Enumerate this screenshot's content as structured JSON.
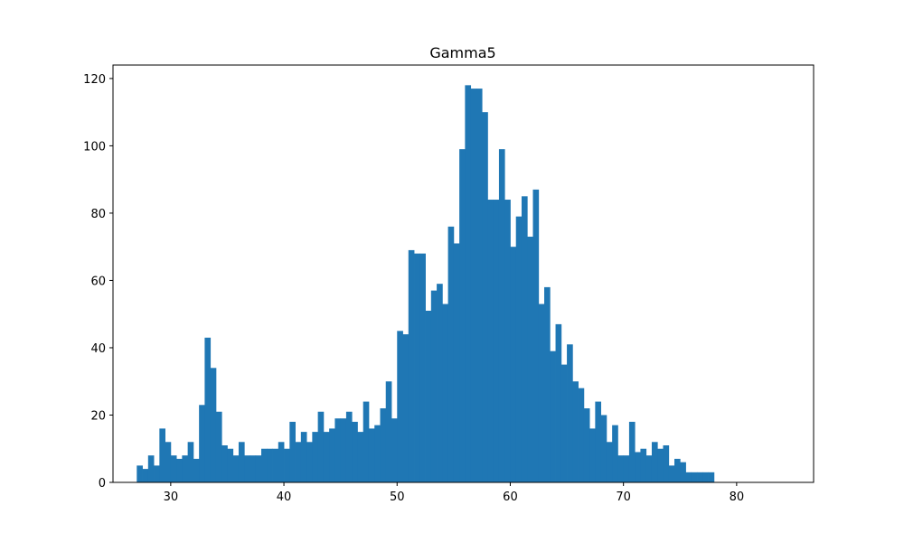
{
  "chart_data": {
    "type": "bar",
    "title": "Gamma5",
    "xlabel": "",
    "ylabel": "",
    "xlim": [
      24.9,
      86.8
    ],
    "ylim": [
      0,
      124
    ],
    "grid": false,
    "bar_color": "#1f77b4",
    "bin_start": 27.0,
    "bin_width": 0.5,
    "x_ticks": [
      30,
      40,
      50,
      60,
      70,
      80
    ],
    "y_ticks": [
      0,
      20,
      40,
      60,
      80,
      100,
      120
    ],
    "values": [
      5,
      4,
      8,
      5,
      16,
      12,
      8,
      7,
      8,
      12,
      7,
      23,
      43,
      34,
      21,
      11,
      10,
      8,
      12,
      8,
      8,
      8,
      10,
      10,
      10,
      12,
      10,
      18,
      12,
      15,
      12,
      15,
      21,
      15,
      16,
      19,
      19,
      21,
      18,
      15,
      24,
      16,
      17,
      22,
      30,
      19,
      45,
      44,
      69,
      68,
      68,
      51,
      57,
      59,
      53,
      76,
      71,
      99,
      118,
      117,
      117,
      110,
      84,
      84,
      99,
      84,
      70,
      79,
      85,
      73,
      87,
      53,
      58,
      39,
      47,
      35,
      41,
      30,
      28,
      22,
      16,
      24,
      20,
      12,
      17,
      8,
      8,
      18,
      9,
      10,
      8,
      12,
      10,
      11,
      5,
      7,
      6,
      3,
      3,
      3,
      3,
      3
    ]
  }
}
